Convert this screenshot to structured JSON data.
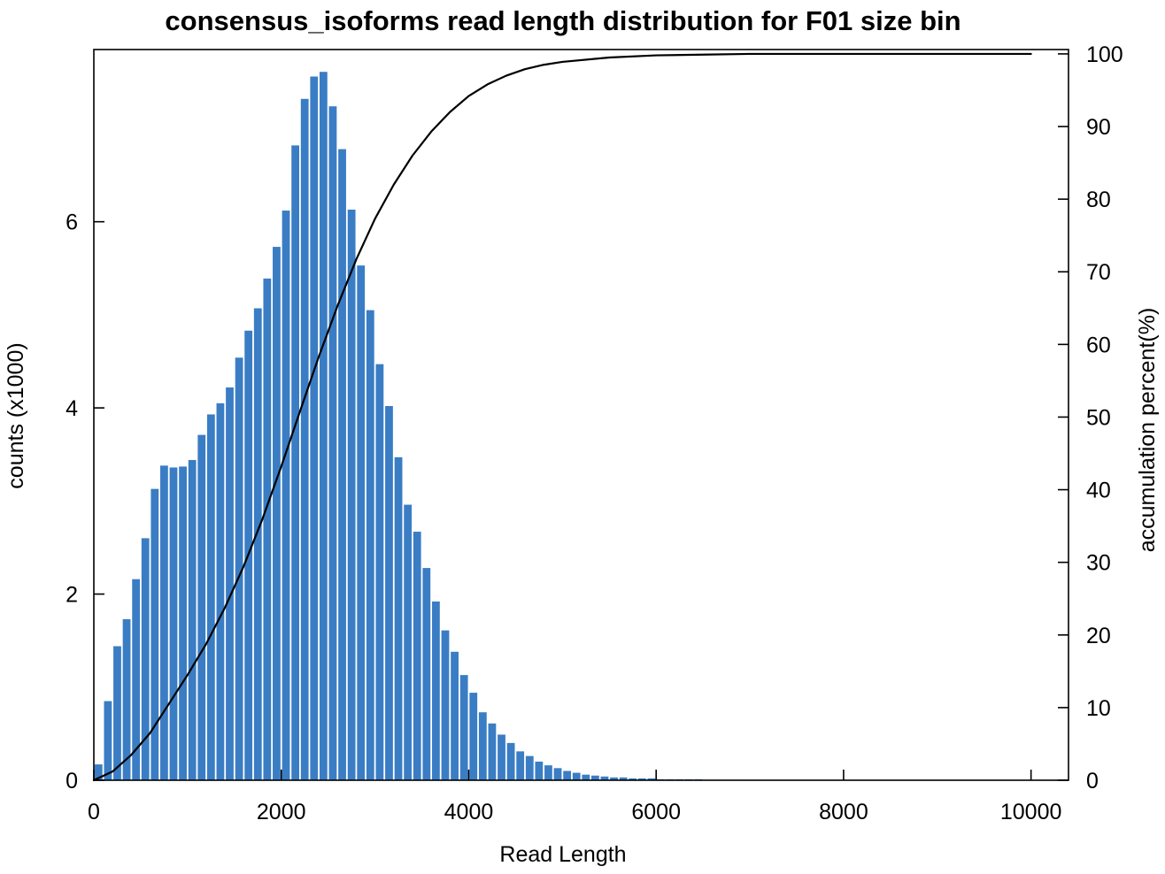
{
  "chart_data": {
    "type": "bar",
    "title": "consensus_isoforms read length distribution for F01 size bin",
    "xlabel": "Read Length",
    "ylabel": "counts (x1000)",
    "y2label": "accumulation percent(%)",
    "xlim": [
      0,
      10400
    ],
    "ylim": [
      0,
      7.85
    ],
    "y2lim": [
      0,
      100.6
    ],
    "x_ticks": [
      0,
      2000,
      4000,
      6000,
      8000,
      10000
    ],
    "y_ticks": [
      0,
      2,
      4,
      6
    ],
    "y2_ticks": [
      0,
      10,
      20,
      30,
      40,
      50,
      60,
      70,
      80,
      90,
      100
    ],
    "bin_width": 100,
    "bar_color": "#3a7dc4",
    "line_color": "#000000",
    "grid": false,
    "legend": "none",
    "series": [
      {
        "type": "bar",
        "axis": "left",
        "x_bin_start": [
          0,
          100,
          200,
          300,
          400,
          500,
          600,
          700,
          800,
          900,
          1000,
          1100,
          1200,
          1300,
          1400,
          1500,
          1600,
          1700,
          1800,
          1900,
          2000,
          2100,
          2200,
          2300,
          2400,
          2500,
          2600,
          2700,
          2800,
          2900,
          3000,
          3100,
          3200,
          3300,
          3400,
          3500,
          3600,
          3700,
          3800,
          3900,
          4000,
          4100,
          4200,
          4300,
          4400,
          4500,
          4600,
          4700,
          4800,
          4900,
          5000,
          5100,
          5200,
          5300,
          5400,
          5500,
          5600,
          5700,
          5800,
          5900,
          6000,
          6100,
          6200,
          6300,
          6400,
          6500,
          6600,
          6700,
          6800,
          6900,
          7000,
          7100,
          7200,
          7300,
          7400,
          7500,
          7600,
          7700,
          7800,
          7900,
          8000
        ],
        "values": [
          0.17,
          0.85,
          1.44,
          1.73,
          2.16,
          2.6,
          3.13,
          3.38,
          3.36,
          3.37,
          3.44,
          3.71,
          3.93,
          4.05,
          4.22,
          4.54,
          4.83,
          5.07,
          5.39,
          5.73,
          6.12,
          6.82,
          7.32,
          7.56,
          7.61,
          7.24,
          6.78,
          6.13,
          5.53,
          5.05,
          4.47,
          4.02,
          3.47,
          2.96,
          2.67,
          2.28,
          1.92,
          1.61,
          1.38,
          1.13,
          0.94,
          0.73,
          0.61,
          0.49,
          0.4,
          0.31,
          0.26,
          0.2,
          0.16,
          0.13,
          0.1,
          0.08,
          0.06,
          0.05,
          0.04,
          0.03,
          0.03,
          0.02,
          0.02,
          0.02,
          0.01,
          0.01,
          0.01,
          0.01,
          0.01,
          0.005,
          0.005,
          0.005,
          0.005,
          0.004,
          0.003,
          0.003,
          0.002,
          0.002,
          0.002,
          0.001,
          0.001,
          0.001,
          0.001,
          0.001,
          0.001
        ]
      },
      {
        "type": "line",
        "axis": "right",
        "x": [
          0,
          200,
          400,
          600,
          800,
          1000,
          1200,
          1400,
          1600,
          1800,
          2000,
          2200,
          2400,
          2600,
          2800,
          3000,
          3200,
          3400,
          3600,
          3800,
          4000,
          4200,
          4400,
          4600,
          4800,
          5000,
          5500,
          6000,
          6500,
          7000,
          8000,
          9000,
          10000
        ],
        "values": [
          0,
          1.2,
          3.5,
          6.5,
          10.5,
          14.5,
          18.8,
          23.8,
          29.5,
          36.0,
          43.2,
          50.8,
          58.3,
          65.3,
          71.7,
          77.3,
          82.0,
          86.0,
          89.3,
          92.0,
          94.2,
          95.8,
          97.0,
          97.9,
          98.5,
          98.9,
          99.5,
          99.8,
          99.9,
          100,
          100,
          100,
          100
        ]
      }
    ]
  }
}
